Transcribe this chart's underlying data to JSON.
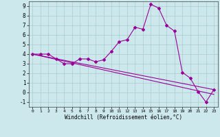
{
  "xlabel": "Windchill (Refroidissement éolien,°C)",
  "background_color": "#cce8ec",
  "line_color": "#990099",
  "grid_color": "#aacccc",
  "xlim": [
    -0.5,
    23.5
  ],
  "ylim": [
    -1.5,
    9.5
  ],
  "xticks": [
    0,
    1,
    2,
    3,
    4,
    5,
    6,
    7,
    8,
    9,
    10,
    11,
    12,
    13,
    14,
    15,
    16,
    17,
    18,
    19,
    20,
    21,
    22,
    23
  ],
  "yticks": [
    -1,
    0,
    1,
    2,
    3,
    4,
    5,
    6,
    7,
    8,
    9
  ],
  "curve1_x": [
    0,
    1,
    2,
    3,
    4,
    5,
    6,
    7,
    8,
    9,
    10,
    11,
    12,
    13,
    14,
    15,
    16,
    17,
    18,
    19,
    20,
    21,
    22,
    23
  ],
  "curve1_y": [
    4.0,
    4.0,
    4.0,
    3.5,
    3.0,
    3.0,
    3.5,
    3.5,
    3.2,
    3.4,
    4.3,
    5.3,
    5.5,
    6.8,
    6.6,
    9.2,
    8.8,
    7.0,
    6.4,
    2.1,
    1.5,
    0.1,
    -1.0,
    0.3
  ],
  "curve2_x": [
    0,
    23
  ],
  "curve2_y": [
    4.0,
    0.3
  ],
  "curve3_x": [
    0,
    23
  ],
  "curve3_y": [
    4.0,
    -0.2
  ],
  "xlabel_fontsize": 5.5,
  "tick_fontsize_x": 4.5,
  "tick_fontsize_y": 5.5
}
